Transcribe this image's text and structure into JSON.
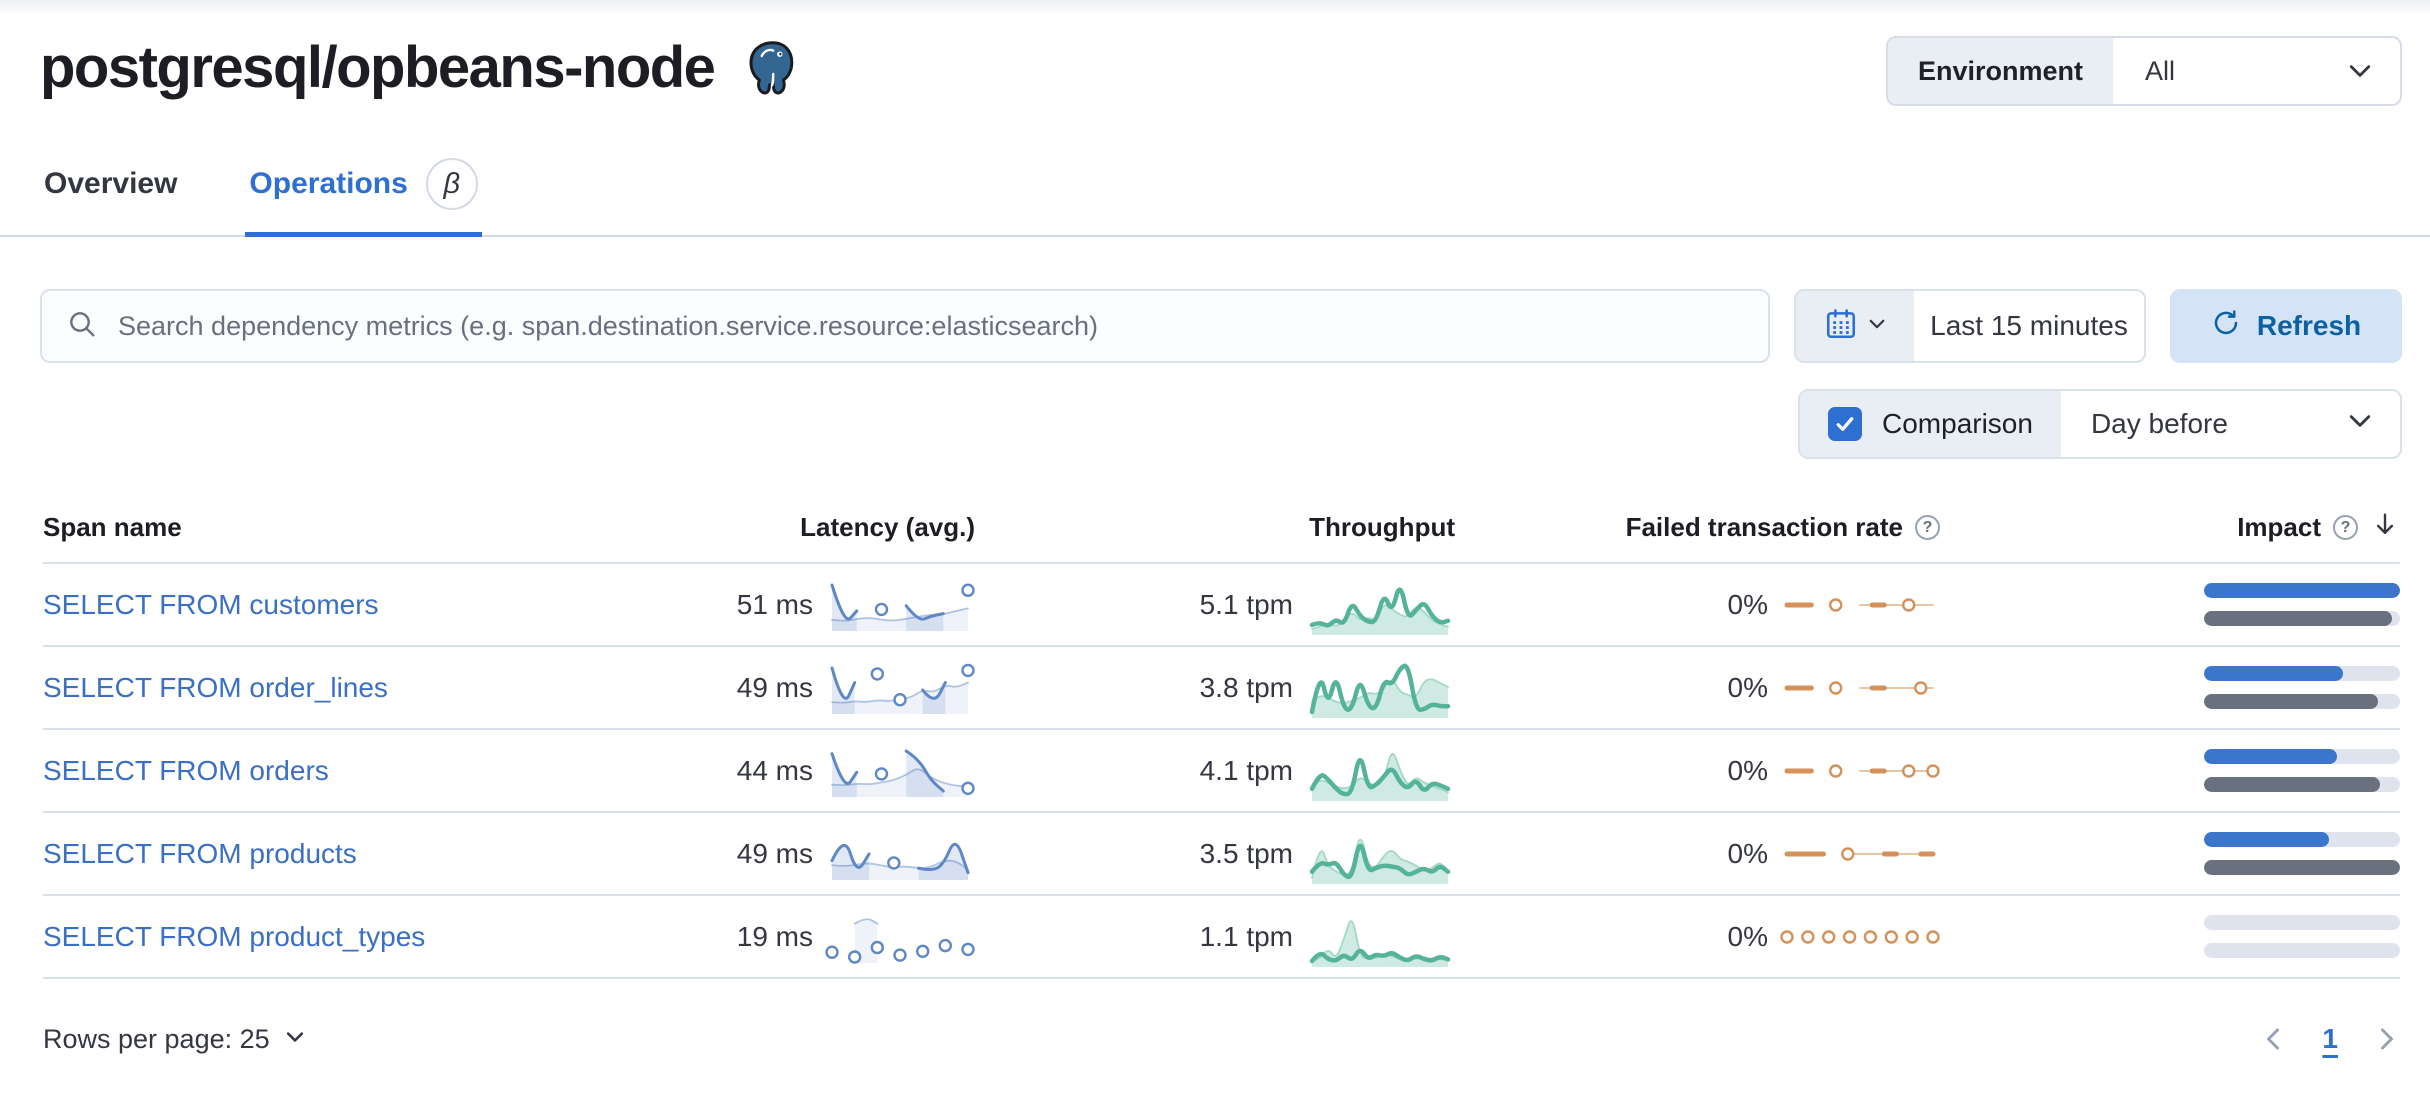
{
  "page": {
    "title": "postgresql/opbeans-node"
  },
  "environment": {
    "label": "Environment",
    "value": "All"
  },
  "tabs": [
    {
      "label": "Overview"
    },
    {
      "label": "Operations",
      "badge": "β"
    }
  ],
  "search": {
    "placeholder": "Search dependency metrics (e.g. span.destination.service.resource:elasticsearch)"
  },
  "time_picker": {
    "value": "Last 15 minutes",
    "refresh_label": "Refresh"
  },
  "comparison": {
    "label": "Comparison",
    "checked": true,
    "value": "Day before"
  },
  "table": {
    "columns": [
      "Span name",
      "Latency (avg.)",
      "Throughput",
      "Failed transaction rate",
      "Impact"
    ],
    "rows": [
      {
        "span_name": "SELECT FROM customers",
        "latency": "51 ms",
        "throughput": "5.1 tpm",
        "failed_rate": "0%",
        "impact": {
          "current": 100,
          "previous": 96
        },
        "latency_spark": {
          "curr": [
            85,
            8,
            35,
            null,
            38,
            null,
            45,
            15,
            25,
            30,
            null,
            75
          ],
          "comp": [
            18,
            15,
            20,
            22,
            18,
            16,
            20,
            24,
            28,
            28,
            35,
            40
          ]
        },
        "throughput_spark": {
          "curr": [
            25,
            30,
            22,
            35,
            25,
            65,
            40,
            30,
            30,
            80,
            45,
            100,
            35,
            50,
            65,
            40,
            28,
            32
          ],
          "comp": [
            18,
            22,
            28,
            22,
            32,
            48,
            32,
            38,
            32,
            62,
            52,
            42,
            38,
            58,
            48,
            32,
            26,
            22
          ]
        },
        "failed_spark": {
          "curr": [
            0,
            0,
            0,
            null,
            0,
            null,
            null,
            0,
            0,
            null,
            0,
            null,
            null
          ],
          "comp": [
            null,
            null,
            null,
            null,
            null,
            null,
            0,
            0,
            0,
            0,
            0,
            0,
            0
          ]
        }
      },
      {
        "span_name": "SELECT FROM order_lines",
        "latency": "49 ms",
        "throughput": "3.8 tpm",
        "failed_rate": "0%",
        "impact": {
          "current": 71,
          "previous": 89
        },
        "latency_spark": {
          "curr": [
            90,
            8,
            60,
            null,
            78,
            null,
            25,
            null,
            45,
            15,
            60,
            null,
            85
          ],
          "comp": [
            20,
            18,
            22,
            20,
            24,
            22,
            26,
            30,
            45,
            40,
            55,
            50,
            60
          ]
        },
        "throughput_spark": {
          "curr": [
            12,
            85,
            22,
            78,
            16,
            16,
            72,
            22,
            16,
            68,
            58,
            88,
            95,
            16,
            16,
            26,
            22,
            22
          ],
          "comp": [
            30,
            42,
            36,
            30,
            26,
            32,
            36,
            46,
            42,
            52,
            72,
            46,
            42,
            36,
            66,
            70,
            62,
            55
          ]
        },
        "failed_spark": {
          "curr": [
            0,
            0,
            0,
            null,
            0,
            null,
            null,
            0,
            0,
            null,
            null,
            0,
            null
          ],
          "comp": [
            null,
            null,
            null,
            null,
            null,
            null,
            0,
            0,
            0,
            0,
            0,
            0,
            0
          ]
        }
      },
      {
        "span_name": "SELECT FROM orders",
        "latency": "44 ms",
        "throughput": "4.1 tpm",
        "failed_rate": "0%",
        "impact": {
          "current": 68,
          "previous": 90
        },
        "latency_spark": {
          "curr": [
            80,
            10,
            45,
            null,
            42,
            null,
            85,
            70,
            30,
            10,
            null,
            15
          ],
          "comp": [
            22,
            20,
            24,
            22,
            26,
            30,
            40,
            55,
            35,
            25,
            20,
            18
          ]
        },
        "throughput_spark": {
          "curr": [
            32,
            58,
            48,
            32,
            22,
            26,
            95,
            32,
            38,
            52,
            68,
            42,
            32,
            48,
            26,
            42,
            38,
            32
          ],
          "comp": [
            36,
            48,
            42,
            36,
            32,
            36,
            52,
            42,
            36,
            46,
            100,
            62,
            36,
            52,
            42,
            36,
            32,
            26
          ]
        },
        "failed_spark": {
          "curr": [
            0,
            0,
            0,
            null,
            0,
            null,
            null,
            0,
            0,
            null,
            0,
            null,
            0
          ],
          "comp": [
            null,
            null,
            null,
            null,
            null,
            null,
            0,
            0,
            0,
            0,
            0,
            0,
            0
          ]
        }
      },
      {
        "span_name": "SELECT FROM products",
        "latency": "49 ms",
        "throughput": "3.5 tpm",
        "failed_rate": "0%",
        "impact": {
          "current": 64,
          "previous": 100
        },
        "latency_spark": {
          "curr": [
            35,
            95,
            5,
            50,
            null,
            30,
            null,
            18,
            12,
            25,
            90,
            8
          ],
          "comp": [
            25,
            22,
            26,
            30,
            24,
            20,
            22,
            18,
            20,
            35,
            35,
            15
          ]
        },
        "throughput_spark": {
          "curr": [
            32,
            48,
            42,
            48,
            26,
            22,
            88,
            32,
            38,
            42,
            40,
            38,
            26,
            32,
            38,
            30,
            42,
            32
          ],
          "comp": [
            22,
            78,
            42,
            32,
            26,
            32,
            98,
            42,
            38,
            58,
            68,
            52,
            48,
            42,
            32,
            38,
            48,
            32
          ]
        },
        "failed_spark": {
          "curr": [
            0,
            0,
            0,
            0,
            null,
            0,
            null,
            null,
            0,
            0,
            null,
            0,
            0
          ],
          "comp": [
            null,
            null,
            null,
            null,
            null,
            0,
            0,
            0,
            0,
            0,
            0,
            0,
            null
          ]
        }
      },
      {
        "span_name": "SELECT FROM product_types",
        "latency": "19 ms",
        "throughput": "1.1 tpm",
        "failed_rate": "0%",
        "impact": {
          "current": 0,
          "previous": 0
        },
        "latency_spark": {
          "curr": [
            25,
            null,
            20,
            null,
            30,
            null,
            22,
            null,
            26,
            null,
            32,
            null,
            28
          ],
          "comp": [
            null,
            null,
            55,
            62,
            55,
            null,
            null,
            null,
            null,
            null,
            null,
            null,
            null
          ]
        },
        "throughput_spark": {
          "curr": [
            3,
            22,
            6,
            3,
            16,
            3,
            28,
            6,
            16,
            12,
            20,
            9,
            3,
            14,
            6,
            3,
            12,
            6
          ],
          "comp": [
            3,
            6,
            28,
            6,
            45,
            95,
            12,
            6,
            9,
            16,
            12,
            6,
            9,
            6,
            12,
            5,
            7,
            4
          ]
        },
        "failed_spark": {
          "curr": [
            0,
            null,
            0,
            null,
            0,
            null,
            0,
            null,
            0,
            null,
            0,
            null,
            0,
            null,
            0
          ],
          "comp": null
        }
      }
    ]
  },
  "footer": {
    "rows_per_page": "Rows per page: 25",
    "page": "1"
  },
  "spark_styles": {
    "latency": {
      "stroke": "#5E87C5",
      "fill": "rgba(94,135,197,0.18)",
      "comp_stroke": "#AFC3E2",
      "comp_fill": "rgba(94,135,197,0.10)",
      "width": 3
    },
    "throughput": {
      "stroke": "#54B399",
      "fill": "none",
      "comp_stroke": "#A2D9C5",
      "comp_fill": "rgba(84,179,153,0.28)",
      "width": 4.5
    },
    "failed": {
      "stroke": "#D4915A",
      "fill": "none",
      "comp_stroke": "#E2BE97",
      "comp_fill": "none",
      "width": 5
    }
  },
  "colors": {
    "accent_blue": "#2E6FD2",
    "link": "#3B6FC4",
    "impact_current": "#3B76CB",
    "impact_previous": "#69717F",
    "impact_track": "#DEE3ED"
  }
}
